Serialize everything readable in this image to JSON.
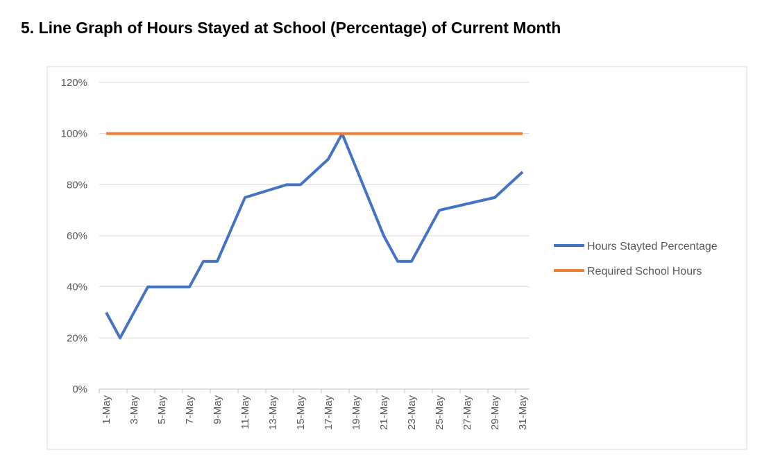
{
  "chart_data": {
    "type": "line",
    "title": "5.  Line Graph of Hours Stayed at School (Percentage) of Current Month",
    "xticks": [
      "1-May",
      "3-May",
      "5-May",
      "7-May",
      "9-May",
      "11-May",
      "13-May",
      "15-May",
      "17-May",
      "19-May",
      "21-May",
      "23-May",
      "25-May",
      "27-May",
      "29-May",
      "31-May"
    ],
    "series": [
      {
        "name": "Hours Stayted Percentage",
        "color": "#4472c4",
        "x": [
          "1-May",
          "2-May",
          "4-May",
          "7-May",
          "8-May",
          "9-May",
          "11-May",
          "14-May",
          "15-May",
          "17-May",
          "18-May",
          "21-May",
          "22-May",
          "23-May",
          "25-May",
          "29-May",
          "31-May"
        ],
        "values": [
          30,
          20,
          40,
          40,
          50,
          50,
          75,
          80,
          80,
          90,
          100,
          60,
          50,
          50,
          70,
          75,
          85
        ]
      },
      {
        "name": "Required School Hours",
        "color": "#ed7d31",
        "x": [
          "1-May",
          "31-May"
        ],
        "values": [
          100,
          100
        ]
      }
    ],
    "ylim": [
      0,
      120
    ],
    "yticks": [
      {
        "value": 0,
        "label": "0%"
      },
      {
        "value": 20,
        "label": "20%"
      },
      {
        "value": 40,
        "label": "40%"
      },
      {
        "value": 60,
        "label": "60%"
      },
      {
        "value": 80,
        "label": "80%"
      },
      {
        "value": 100,
        "label": "100%"
      },
      {
        "value": 120,
        "label": "120%"
      }
    ],
    "grid": true
  }
}
